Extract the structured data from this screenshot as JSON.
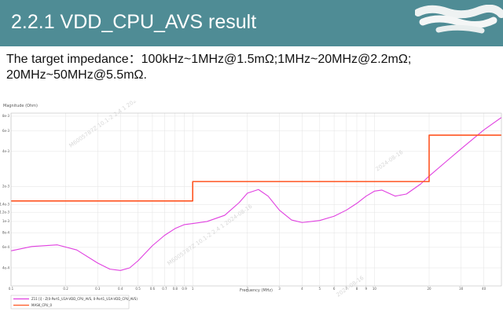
{
  "slide": {
    "title": "2.2.1 VDD_CPU_AVS result",
    "subtitle_line1": "The target impedance：100kHz~1MHz@1.5mΩ;1MHz~20MHz@2.2mΩ;",
    "subtitle_line2": "20MHz~50MHz@5.5mΩ."
  },
  "colors": {
    "title_bar": "#4f8c95",
    "impedance_curve": "#e040e0",
    "target_mask": "#ff5522"
  },
  "chart_data": {
    "type": "line",
    "title": "",
    "ylabel": "Magnitude (Ohm)",
    "xlabel": "Frequency (MHz)",
    "x_scale": "log",
    "y_scale": "log",
    "xlim": [
      0.1,
      50
    ],
    "ylim": [
      0.00028,
      0.0085
    ],
    "grid": true,
    "legend_position": "bottom-left",
    "x_ticks": [
      {
        "v": 0.1,
        "label": "0.1"
      },
      {
        "v": 0.2,
        "label": "0.2"
      },
      {
        "v": 0.3,
        "label": "0.3"
      },
      {
        "v": 0.4,
        "label": "0.4"
      },
      {
        "v": 0.5,
        "label": "0.5"
      },
      {
        "v": 0.6,
        "label": "0.6"
      },
      {
        "v": 0.7,
        "label": "0.7"
      },
      {
        "v": 0.8,
        "label": "0.8"
      },
      {
        "v": 0.9,
        "label": "0.9"
      },
      {
        "v": 1,
        "label": "1"
      },
      {
        "v": 2,
        "label": "2"
      },
      {
        "v": 3,
        "label": "3"
      },
      {
        "v": 4,
        "label": "4"
      },
      {
        "v": 5,
        "label": "5"
      },
      {
        "v": 6,
        "label": "6"
      },
      {
        "v": 7,
        "label": "7"
      },
      {
        "v": 8,
        "label": "8"
      },
      {
        "v": 9,
        "label": "9"
      },
      {
        "v": 10,
        "label": "10"
      },
      {
        "v": 20,
        "label": "20"
      },
      {
        "v": 30,
        "label": "30"
      },
      {
        "v": 40,
        "label": "40"
      }
    ],
    "y_ticks": [
      {
        "v": 0.0004,
        "label": "4e-4"
      },
      {
        "v": 0.0006,
        "label": "6e-4"
      },
      {
        "v": 0.0008,
        "label": "8e-4"
      },
      {
        "v": 0.001,
        "label": "1e-3"
      },
      {
        "v": 0.0012,
        "label": "1.2e-3"
      },
      {
        "v": 0.0014,
        "label": "1.4e-3"
      },
      {
        "v": 0.002,
        "label": "2e-3"
      },
      {
        "v": 0.004,
        "label": "4e-3"
      },
      {
        "v": 0.006,
        "label": "6e-3"
      },
      {
        "v": 0.008,
        "label": "8e-3"
      }
    ],
    "series": [
      {
        "name": "Z11 [i] - Z(0-Port1_U1A-VDD_CPU_AVS, 0-Port1_U1A-VDD_CPU_AVS)",
        "color": "#e040e0",
        "x": [
          0.1,
          0.13,
          0.18,
          0.23,
          0.3,
          0.35,
          0.4,
          0.45,
          0.5,
          0.6,
          0.7,
          0.8,
          0.9,
          1.0,
          1.2,
          1.5,
          1.8,
          2.0,
          2.3,
          2.6,
          3.0,
          3.5,
          4.0,
          4.5,
          5.0,
          6.0,
          7.0,
          8.0,
          9.0,
          10.0,
          11.0,
          13.0,
          15.0,
          18.0,
          20.0,
          25.0,
          30.0,
          40.0,
          50.0
        ],
        "y": [
          0.00056,
          0.00061,
          0.00063,
          0.00057,
          0.00044,
          0.00039,
          0.00038,
          0.0004,
          0.00046,
          0.00062,
          0.00076,
          0.00087,
          0.00094,
          0.00096,
          0.001,
          0.00113,
          0.00145,
          0.00175,
          0.00188,
          0.00165,
          0.00125,
          0.00103,
          0.00098,
          0.001,
          0.00102,
          0.00111,
          0.00125,
          0.00143,
          0.00165,
          0.00182,
          0.00186,
          0.00165,
          0.00172,
          0.0021,
          0.00245,
          0.0033,
          0.0042,
          0.0061,
          0.0078
        ]
      },
      {
        "name": "MASK_CPU_0",
        "color": "#ff5522",
        "x": [
          0.1,
          1.0,
          1.0,
          20.0,
          20.0,
          50.0
        ],
        "y": [
          0.0015,
          0.0015,
          0.0022,
          0.0022,
          0.0055,
          0.0055
        ]
      }
    ]
  }
}
